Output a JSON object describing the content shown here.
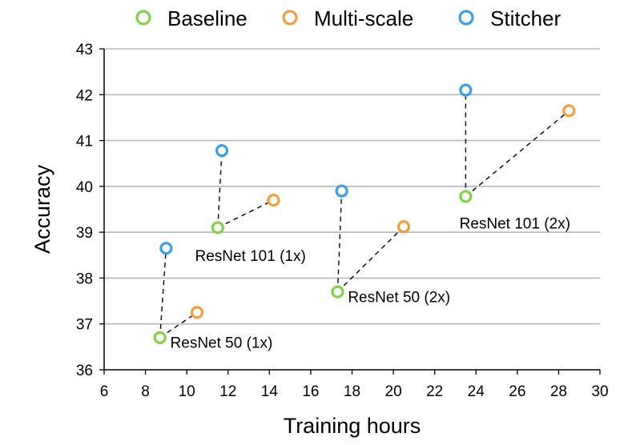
{
  "chart_data": {
    "type": "scatter",
    "title": "",
    "xlabel": "Training hours",
    "ylabel": "Accuracy",
    "xlim": [
      6,
      30
    ],
    "ylim": [
      36,
      43
    ],
    "xticks": [
      6,
      8,
      10,
      12,
      14,
      16,
      18,
      20,
      22,
      24,
      26,
      28,
      30
    ],
    "yticks": [
      36,
      37,
      38,
      39,
      40,
      41,
      42,
      43
    ],
    "grid": "horizontal",
    "legend_position": "top",
    "series": [
      {
        "name": "Baseline",
        "color": "#82d14e",
        "points": [
          {
            "x": 8.7,
            "y": 36.7
          },
          {
            "x": 11.5,
            "y": 39.1
          },
          {
            "x": 17.3,
            "y": 37.7
          },
          {
            "x": 23.5,
            "y": 39.78
          }
        ]
      },
      {
        "name": "Multi-scale",
        "color": "#f0a040",
        "points": [
          {
            "x": 10.5,
            "y": 37.25
          },
          {
            "x": 14.2,
            "y": 39.7
          },
          {
            "x": 20.5,
            "y": 39.12
          },
          {
            "x": 28.5,
            "y": 41.65
          }
        ]
      },
      {
        "name": "Stitcher",
        "color": "#3f9de6",
        "points": [
          {
            "x": 9.0,
            "y": 38.65
          },
          {
            "x": 11.7,
            "y": 40.78
          },
          {
            "x": 17.5,
            "y": 39.9
          },
          {
            "x": 23.5,
            "y": 42.1
          }
        ]
      }
    ],
    "annotations": [
      {
        "text": "ResNet 50 (1x)",
        "x": 9.2,
        "y": 36.6
      },
      {
        "text": "ResNet 101 (1x)",
        "x": 10.4,
        "y": 38.5
      },
      {
        "text": "ResNet 50 (2x)",
        "x": 17.8,
        "y": 37.6
      },
      {
        "text": "ResNet 101 (2x)",
        "x": 23.2,
        "y": 39.2
      }
    ]
  }
}
